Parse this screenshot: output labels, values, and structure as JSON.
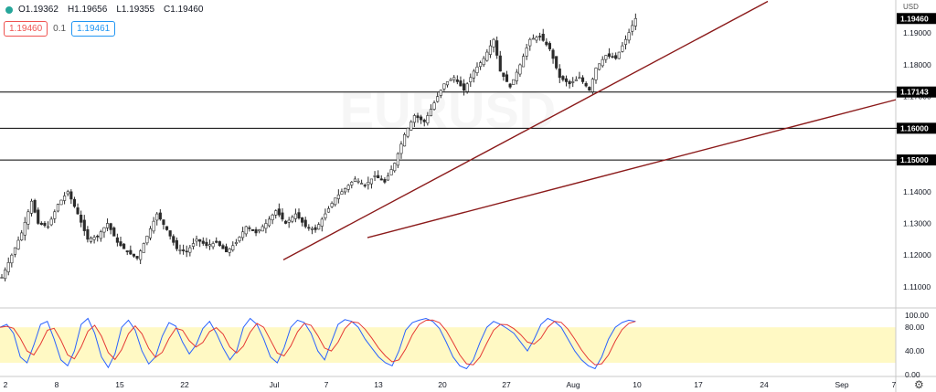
{
  "header": {
    "open": "O1.19362",
    "high": "H1.19656",
    "low": "L1.19355",
    "close": "C1.19460",
    "bid": "1.19460",
    "spread": "0.1",
    "ask": "1.19461"
  },
  "currency": "USD",
  "colors": {
    "up": "#26a69a",
    "down": "#ef5350",
    "candle": "#2b2b2b",
    "trendline": "#8b1a1a",
    "stoch_k": "#2962ff",
    "stoch_d": "#e53935",
    "stoch_band": "#fff9c4"
  },
  "chart_data": {
    "type": "candlestick",
    "price_axis": {
      "ticks": [
        "1.11000",
        "1.12000",
        "1.13000",
        "1.14000",
        "1.15000",
        "1.16000",
        "1.17000",
        "1.18000",
        "1.19000"
      ],
      "range": [
        1.1045,
        1.199
      ]
    },
    "current_price": "1.19460",
    "horizontal_levels": [
      {
        "label": "1.17143",
        "value": 1.17143
      },
      {
        "label": "1.16000",
        "value": 1.16
      },
      {
        "label": "1.15000",
        "value": 1.15
      }
    ],
    "time_axis": {
      "labels": [
        "2",
        "8",
        "15",
        "22",
        "Jul",
        "7",
        "13",
        "20",
        "27",
        "Aug",
        "10",
        "17",
        "24",
        "Sep",
        "7"
      ]
    },
    "trendlines": [
      {
        "from": [
          "Jul 1",
          1.1185
        ],
        "to": [
          "Aug 24+",
          1.2
        ]
      },
      {
        "from": [
          "Jul 13",
          1.1255
        ],
        "to": [
          "Sep 7+",
          1.169
        ]
      }
    ],
    "close_path": [
      [
        0,
        1.113
      ],
      [
        3,
        1.12
      ],
      [
        6,
        1.127
      ],
      [
        9,
        1.137
      ],
      [
        11,
        1.13
      ],
      [
        14,
        1.129
      ],
      [
        17,
        1.136
      ],
      [
        20,
        1.14
      ],
      [
        23,
        1.133
      ],
      [
        26,
        1.125
      ],
      [
        29,
        1.126
      ],
      [
        32,
        1.13
      ],
      [
        35,
        1.124
      ],
      [
        38,
        1.121
      ],
      [
        41,
        1.119
      ],
      [
        44,
        1.126
      ],
      [
        47,
        1.133
      ],
      [
        50,
        1.128
      ],
      [
        53,
        1.122
      ],
      [
        56,
        1.121
      ],
      [
        59,
        1.125
      ],
      [
        62,
        1.123
      ],
      [
        65,
        1.124
      ],
      [
        68,
        1.121
      ],
      [
        71,
        1.124
      ],
      [
        74,
        1.129
      ],
      [
        77,
        1.127
      ],
      [
        80,
        1.13
      ],
      [
        83,
        1.134
      ],
      [
        86,
        1.13
      ],
      [
        89,
        1.133
      ],
      [
        92,
        1.129
      ],
      [
        95,
        1.128
      ],
      [
        98,
        1.133
      ],
      [
        101,
        1.138
      ],
      [
        104,
        1.141
      ],
      [
        107,
        1.144
      ],
      [
        110,
        1.142
      ],
      [
        113,
        1.145
      ],
      [
        116,
        1.143
      ],
      [
        119,
        1.149
      ],
      [
        122,
        1.158
      ],
      [
        125,
        1.164
      ],
      [
        128,
        1.162
      ],
      [
        131,
        1.168
      ],
      [
        134,
        1.174
      ],
      [
        137,
        1.176
      ],
      [
        140,
        1.172
      ],
      [
        143,
        1.178
      ],
      [
        146,
        1.182
      ],
      [
        149,
        1.188
      ],
      [
        151,
        1.178
      ],
      [
        154,
        1.173
      ],
      [
        157,
        1.18
      ],
      [
        160,
        1.188
      ],
      [
        163,
        1.189
      ],
      [
        166,
        1.185
      ],
      [
        169,
        1.176
      ],
      [
        172,
        1.174
      ],
      [
        175,
        1.176
      ],
      [
        178,
        1.172
      ],
      [
        180,
        1.179
      ],
      [
        183,
        1.183
      ],
      [
        186,
        1.182
      ],
      [
        189,
        1.188
      ],
      [
        192,
        1.1946
      ]
    ],
    "oscillator": {
      "type": "stochastic",
      "ticks": [
        "100.00",
        "80.00",
        "40.00",
        "0.00"
      ],
      "range": [
        0,
        105
      ],
      "band": [
        20,
        80
      ],
      "k": [
        80,
        85,
        70,
        30,
        20,
        50,
        85,
        90,
        60,
        25,
        15,
        40,
        85,
        95,
        70,
        30,
        12,
        35,
        80,
        92,
        75,
        40,
        18,
        30,
        65,
        88,
        82,
        55,
        35,
        50,
        78,
        90,
        70,
        45,
        25,
        40,
        80,
        95,
        85,
        60,
        30,
        20,
        45,
        80,
        92,
        88,
        70,
        40,
        25,
        55,
        85,
        93,
        90,
        80,
        60,
        45,
        30,
        20,
        15,
        40,
        75,
        88,
        92,
        95,
        90,
        78,
        55,
        30,
        15,
        10,
        25,
        55,
        80,
        90,
        85,
        78,
        70,
        55,
        40,
        60,
        85,
        95,
        90,
        80,
        60,
        40,
        25,
        15,
        10,
        30,
        60,
        80,
        88,
        92,
        90
      ]
    }
  }
}
